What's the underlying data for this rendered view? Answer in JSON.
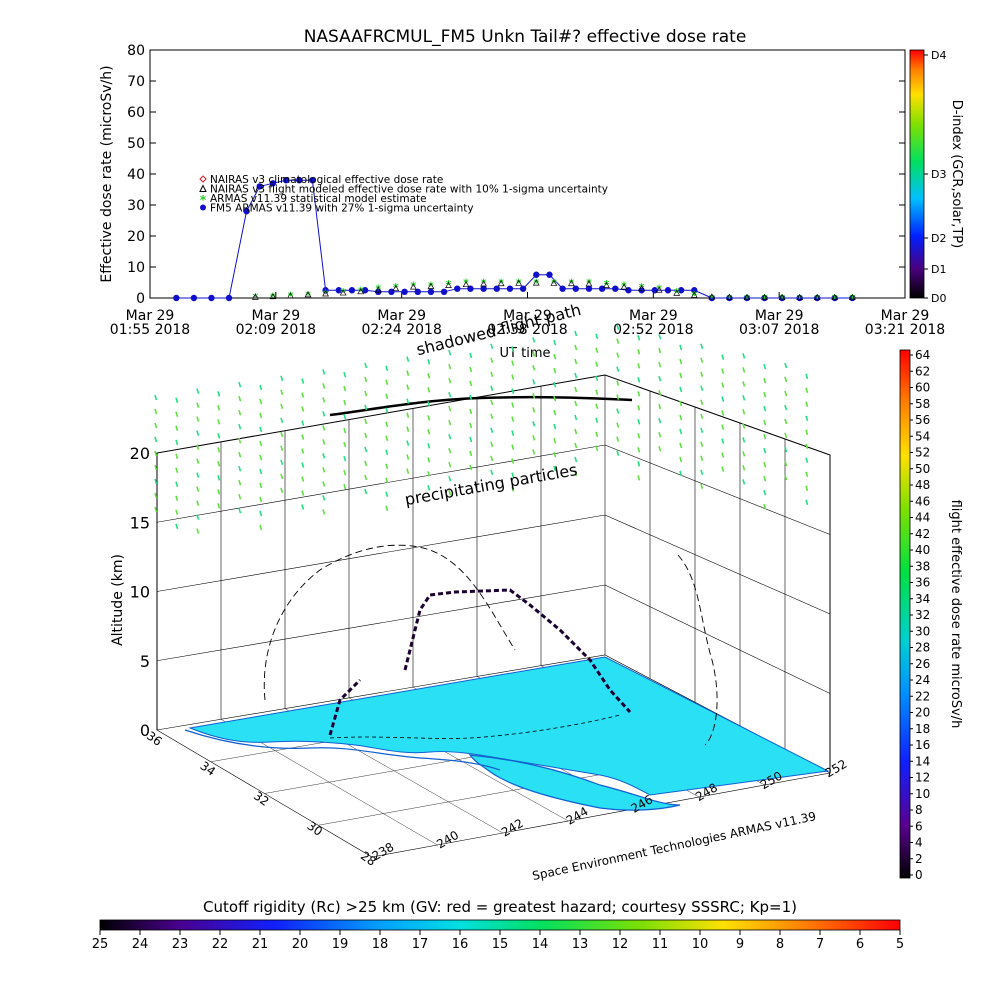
{
  "chart_data": [
    {
      "type": "scatter",
      "title": "NASAAFRCMUL_FM5 Unkn Tail#? effective dose rate",
      "ylabel": "Effective dose rate (microSv/h)",
      "xlabel": "UT time",
      "ylim": [
        0,
        80
      ],
      "yticks": [
        "0",
        "10",
        "20",
        "30",
        "40",
        "50",
        "60",
        "70",
        "80"
      ],
      "xticks": [
        {
          "date": "Mar 29",
          "time": "01:55 2018"
        },
        {
          "date": "Mar 29",
          "time": "02:09 2018"
        },
        {
          "date": "Mar 29",
          "time": "02:24 2018"
        },
        {
          "date": "Mar 29",
          "time": "02:38 2018"
        },
        {
          "date": "Mar 29",
          "time": "02:52 2018"
        },
        {
          "date": "Mar 29",
          "time": "03:07 2018"
        },
        {
          "date": "Mar 29",
          "time": "03:21 2018"
        }
      ],
      "x_unit": "minutes after 01:55 UT",
      "x_range": [
        0,
        86
      ],
      "legend": [
        {
          "label": "NAIRAS v3 climatological effective dose rate",
          "marker": "diamond",
          "color": "#d02020"
        },
        {
          "label": "NAIRAS v3 flight modeled effective dose rate with 10% 1-sigma uncertainty",
          "marker": "triangle",
          "color": "#000000"
        },
        {
          "label": "ARMAS v11.39 statistical model estimate",
          "marker": "asterisk",
          "color": "#22cc22"
        },
        {
          "label": "FM5 ARMAS v11.39 with 27% 1-sigma uncertainty",
          "marker": "dot",
          "color": "#1010cc"
        }
      ],
      "series": [
        {
          "name": "FM5 ARMAS v11.39 with 27% 1-sigma uncertainty",
          "x": [
            3,
            5,
            7,
            9,
            11,
            12.5,
            14,
            15.5,
            17,
            18.5,
            20,
            21.5,
            23,
            24.5,
            26,
            27.5,
            29,
            30.5,
            32,
            33.5,
            35,
            36.5,
            38,
            39.5,
            41,
            42.5,
            44,
            45.5,
            47,
            48.5,
            50,
            51.5,
            53,
            54.5,
            56,
            57.5,
            59,
            60.5,
            62,
            64,
            66,
            68,
            70,
            72,
            74,
            76,
            78,
            80
          ],
          "y": [
            0,
            0,
            0,
            0,
            28,
            36,
            37,
            38,
            38,
            38,
            2.5,
            2.5,
            2.5,
            2.5,
            2,
            2,
            2,
            2,
            2,
            2,
            3,
            3,
            3,
            3,
            3,
            3,
            7.5,
            7.5,
            3,
            3,
            3,
            3,
            3,
            2.5,
            2.5,
            2.5,
            2.5,
            2.5,
            2.5,
            0,
            0,
            0,
            0,
            0,
            0,
            0,
            0,
            0
          ]
        },
        {
          "name": "ARMAS v11.39 statistical model estimate",
          "x": [
            12,
            14,
            16,
            18,
            20,
            22,
            24,
            26,
            28,
            30,
            32,
            34,
            36,
            38,
            40,
            42,
            44,
            46,
            48,
            50,
            52,
            54,
            56,
            58,
            60,
            62,
            64,
            66,
            68,
            70,
            72,
            74,
            76,
            78,
            80
          ],
          "y": [
            0.3,
            0.5,
            0.8,
            1,
            1.5,
            2,
            2.5,
            3,
            3.5,
            4,
            4,
            4.5,
            5,
            5,
            5,
            5,
            5,
            5,
            5,
            5,
            4.5,
            4,
            3.5,
            3,
            2,
            1,
            0,
            0,
            0,
            0,
            0,
            0,
            0,
            0,
            0
          ]
        },
        {
          "name": "NAIRAS v3 flight modeled effective dose rate with 10% 1-sigma uncertainty",
          "x": [
            12,
            14,
            16,
            18,
            20,
            22,
            24,
            26,
            28,
            30,
            32,
            34,
            36,
            38,
            40,
            42,
            44,
            46,
            48,
            50,
            52,
            54,
            56,
            58,
            60,
            62,
            64,
            66,
            68,
            70,
            72,
            74,
            76,
            78,
            80
          ],
          "y": [
            0.2,
            0.4,
            0.6,
            1,
            1.3,
            1.6,
            2,
            2.5,
            3,
            3.5,
            3.7,
            4,
            4.3,
            4.5,
            4.6,
            4.7,
            4.8,
            4.7,
            4.6,
            4.5,
            4,
            3.5,
            3,
            2.5,
            1.5,
            0.8,
            0.3,
            0.2,
            0.1,
            0.1,
            0.1,
            0.1,
            0.1,
            0.1,
            0.1
          ]
        }
      ],
      "colorbar": {
        "label": "D-index (GCR,solar,TP)",
        "ticks": [
          "D0",
          "D1",
          "D2",
          "D3",
          "D4"
        ]
      }
    },
    {
      "type": "scatter",
      "title": "",
      "zlabel": "Altitude (km)",
      "zticks": [
        "0",
        "5",
        "10",
        "15",
        "20"
      ],
      "xticks": [
        "238",
        "240",
        "242",
        "244",
        "246",
        "248",
        "250",
        "252"
      ],
      "yticks": [
        "28",
        "30",
        "32",
        "34",
        "36"
      ],
      "credit": "Space Environment Technologies ARMAS v11.39",
      "annotations": [
        "shadowed flight path",
        "precipitating particles"
      ],
      "colorbar": {
        "label": "flight effective dose rate microSv/h",
        "ticks": [
          "0",
          "2",
          "4",
          "6",
          "8",
          "10",
          "12",
          "14",
          "16",
          "18",
          "20",
          "22",
          "24",
          "26",
          "28",
          "30",
          "32",
          "34",
          "36",
          "38",
          "40",
          "42",
          "44",
          "46",
          "48",
          "50",
          "52",
          "54",
          "56",
          "58",
          "60",
          "62",
          "64"
        ]
      }
    }
  ],
  "bottom_colorbar": {
    "label": "Cutoff rigidity (Rc) >25 km (GV: red = greatest hazard; courtesy SSSRC; Kp=1)",
    "ticks": [
      "25",
      "24",
      "23",
      "22",
      "21",
      "20",
      "19",
      "18",
      "17",
      "16",
      "15",
      "14",
      "13",
      "12",
      "11",
      "10",
      "9",
      "8",
      "7",
      "6",
      "5"
    ]
  },
  "colors": {
    "dose_series": "#1010cc",
    "model_series": "#22cc22",
    "nairas": "#000000",
    "ocean": "#2ae0f5",
    "coast": "#1060d0"
  }
}
